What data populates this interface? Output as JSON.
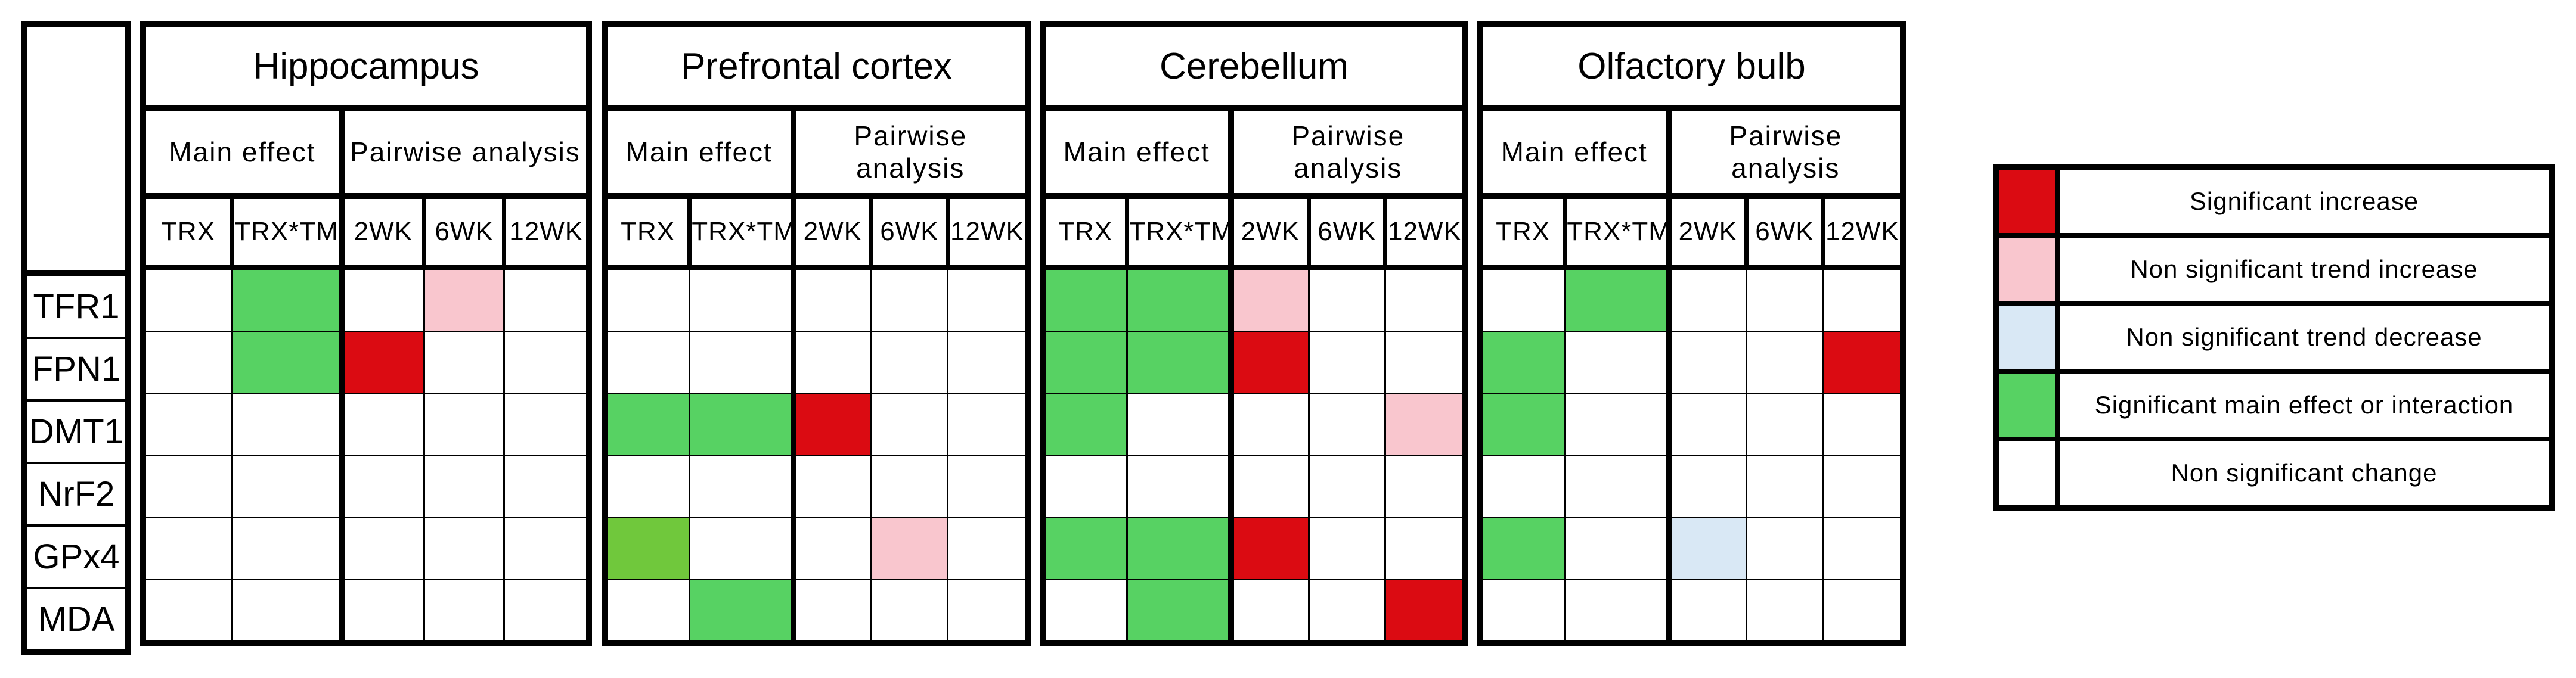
{
  "colors": {
    "W": "#FFFFFF",
    "G": "#57D263",
    "Y": "#70C83C",
    "R": "#DB0B12",
    "P": "#F9C6CE",
    "B": "#D9E8F5",
    "border": "#000000"
  },
  "chart_data": {
    "type": "heatmap",
    "rows": [
      "TFR1",
      "FPN1",
      "DMT1",
      "NrF2",
      "GPx4",
      "MDA"
    ],
    "column_groups": [
      {
        "label": "Main effect",
        "columns": [
          "TRX",
          "TRX*TM"
        ]
      },
      {
        "label": "Pairwise analysis",
        "columns": [
          "2WK",
          "6WK",
          "12WK"
        ]
      }
    ],
    "cell_code_meaning": {
      "W": "Non significant change",
      "G": "Significant main effect or interaction",
      "Y": "Significant main effect or interaction",
      "R": "Significant increase",
      "P": "Non significant trend increase",
      "B": "Non significant trend decrease"
    },
    "regions": [
      {
        "name": "Hippocampus",
        "cells": [
          [
            "W",
            "G",
            "W",
            "P",
            "W"
          ],
          [
            "W",
            "G",
            "R",
            "W",
            "W"
          ],
          [
            "W",
            "W",
            "W",
            "W",
            "W"
          ],
          [
            "W",
            "W",
            "W",
            "W",
            "W"
          ],
          [
            "W",
            "W",
            "W",
            "W",
            "W"
          ],
          [
            "W",
            "W",
            "W",
            "W",
            "W"
          ]
        ]
      },
      {
        "name": "Prefrontal cortex",
        "cells": [
          [
            "W",
            "W",
            "W",
            "W",
            "W"
          ],
          [
            "W",
            "W",
            "W",
            "W",
            "W"
          ],
          [
            "G",
            "G",
            "R",
            "W",
            "W"
          ],
          [
            "W",
            "W",
            "W",
            "W",
            "W"
          ],
          [
            "Y",
            "W",
            "W",
            "P",
            "W"
          ],
          [
            "W",
            "G",
            "W",
            "W",
            "W"
          ]
        ]
      },
      {
        "name": "Cerebellum",
        "cells": [
          [
            "G",
            "G",
            "P",
            "W",
            "W"
          ],
          [
            "G",
            "G",
            "R",
            "W",
            "W"
          ],
          [
            "G",
            "W",
            "W",
            "W",
            "P"
          ],
          [
            "W",
            "W",
            "W",
            "W",
            "W"
          ],
          [
            "G",
            "G",
            "R",
            "W",
            "W"
          ],
          [
            "W",
            "G",
            "W",
            "W",
            "R"
          ]
        ]
      },
      {
        "name": "Olfactory bulb",
        "cells": [
          [
            "W",
            "G",
            "W",
            "W",
            "W"
          ],
          [
            "G",
            "W",
            "W",
            "W",
            "R"
          ],
          [
            "G",
            "W",
            "W",
            "W",
            "W"
          ],
          [
            "W",
            "W",
            "W",
            "W",
            "W"
          ],
          [
            "G",
            "W",
            "B",
            "W",
            "W"
          ],
          [
            "W",
            "W",
            "W",
            "W",
            "W"
          ]
        ]
      }
    ]
  },
  "legend": {
    "entries": [
      {
        "color": "R",
        "label": "Significant increase"
      },
      {
        "color": "P",
        "label": "Non significant trend increase"
      },
      {
        "color": "B",
        "label": "Non significant trend decrease"
      },
      {
        "color": "G",
        "label": "Significant main effect or interaction"
      },
      {
        "color": "W",
        "label": "Non significant change"
      }
    ]
  }
}
